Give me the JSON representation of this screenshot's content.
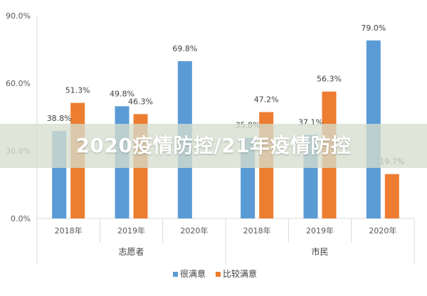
{
  "chart_data": {
    "type": "bar",
    "groups": [
      {
        "label": "志愿者",
        "categories": [
          "2018年",
          "2019年",
          "2020年"
        ]
      },
      {
        "label": "市民",
        "categories": [
          "2018年",
          "2019年",
          "2020年"
        ]
      }
    ],
    "series": [
      {
        "name": "很满意",
        "color": "#5b9bd5",
        "values": [
          38.8,
          49.8,
          69.8,
          35.8,
          37.1,
          79.0
        ],
        "labels": [
          "38.8%",
          "49.8%",
          "69.8%",
          "35.8%",
          "37.1%",
          "79.0%"
        ]
      },
      {
        "name": "比较满意",
        "color": "#ed7d31",
        "values": [
          51.3,
          46.3,
          null,
          47.2,
          56.3,
          19.7
        ],
        "labels": [
          "51.3%",
          "46.3%",
          "",
          "47.2%",
          "56.3%",
          "19.7%"
        ]
      }
    ],
    "y_ticks": [
      "0.0%",
      "30.0%",
      "60.0%",
      "90.0%"
    ],
    "ylim": [
      0,
      90
    ],
    "legend_position": "bottom",
    "grid": false
  },
  "watermark": "2020疫情防控/21年疫情防控"
}
